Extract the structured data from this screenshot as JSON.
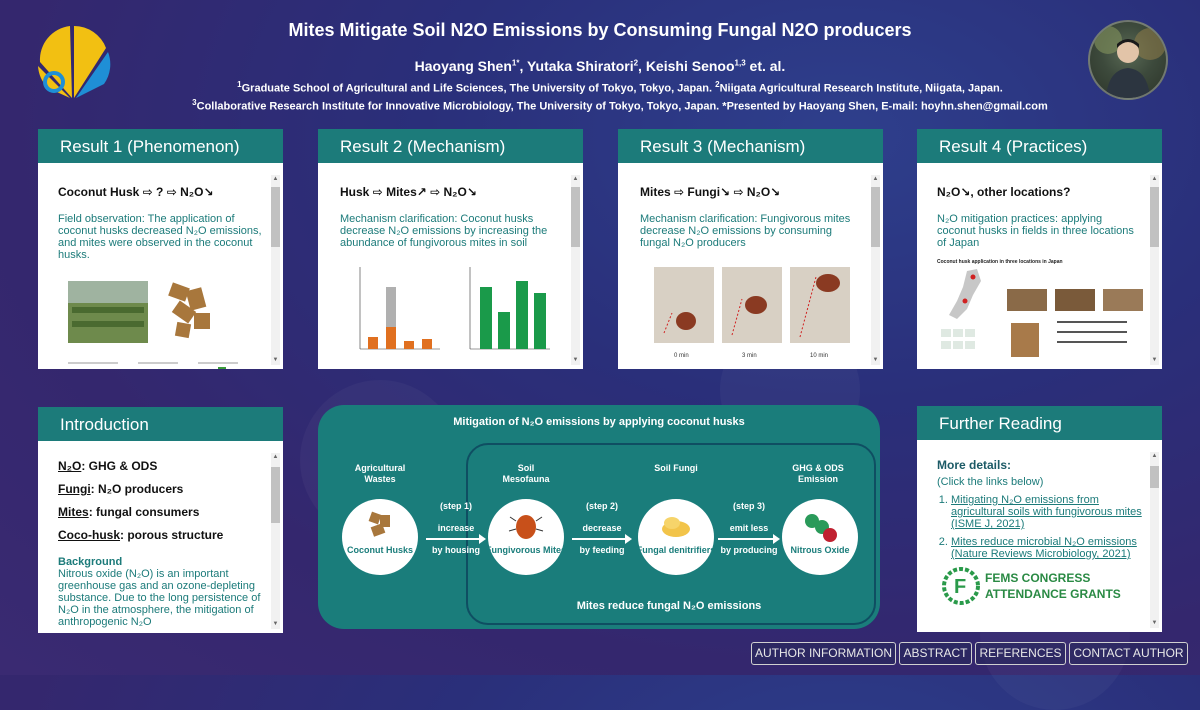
{
  "header": {
    "title": "Mites Mitigate Soil N2O Emissions by Consuming Fungal N2O producers",
    "author1": "Haoyang Shen",
    "author1_sup": "1*",
    "author2": ", Yutaka Shiratori",
    "author2_sup": "2",
    "author3": ", Keishi Senoo",
    "author3_sup": "1,3",
    "author_suffix": " et. al.",
    "affil1_sup": "1",
    "affil1": "Graduate School of Agricultural and Life Sciences, The University of Tokyo, Tokyo, Japan. ",
    "affil2_sup": "2",
    "affil2": "Niigata Agricultural Research Institute, Niigata, Japan.",
    "affil3_sup": "3",
    "affil3": "Collaborative Research Institute for Innovative Microbiology, The University of Tokyo, Tokyo, Japan. *Presented by Haoyang Shen, E-mail: hoyhn.shen@gmail.com"
  },
  "result1": {
    "header": "Result 1 (Phenomenon)",
    "title": "Coconut Husk ⇨ ? ⇨ N₂O↘",
    "text": "Field observation: The application of coconut husks decreased N₂O emissions, and mites were observed in the coconut husks."
  },
  "result2": {
    "header": "Result 2 (Mechanism)",
    "title": "Husk ⇨ Mites↗ ⇨ N₂O↘",
    "text": "Mechanism clarification: Coconut husks decrease N₂O emissions by increasing the abundance of fungivorous mites in soil"
  },
  "result3": {
    "header": "Result 3 (Mechanism)",
    "title": "Mites ⇨ Fungi↘ ⇨ N₂O↘",
    "text": "Mechanism clarification: Fungivorous mites decrease N₂O emissions by consuming fungal N₂O producers",
    "time0": "0 min",
    "time1": "3 min",
    "time2": "10 min"
  },
  "result4": {
    "header": "Result 4 (Practices)",
    "title": "N₂O↘, other locations?",
    "text": "N₂O mitigation practices: applying coconut husks in fields in three locations of Japan",
    "figure_title": "Coconut husk application in three locations in Japan"
  },
  "intro": {
    "header": "Introduction",
    "l1a": "N₂O",
    "l1b": ": GHG & ODS",
    "l2a": "Fungi",
    "l2b": ": N₂O producers",
    "l3a": "Mites",
    "l3b": ": fungal consumers",
    "l4a": "Coco-husk",
    "l4b": ": porous structure",
    "bg_title": "Background",
    "bg_text": "Nitrous oxide (N₂O) is an important greenhouse gas and an ozone-depleting substance. Due to the long persistence of N₂O in the atmosphere, the mitigation of anthropogenic N₂O"
  },
  "diagram": {
    "title": "Mitigation of N₂O emissions by applying coconut husks",
    "bottom": "Mites reduce fungal N₂O emissions",
    "col1_top": "Agricultural Wastes",
    "col2_top": "Soil Mesofauna",
    "col3_top": "Soil Fungi",
    "col4_top": "GHG & ODS Emission",
    "c1": "Coconut Husks",
    "c2": "Fungivorous Mites",
    "c3": "Fungal denitrifiers",
    "c4": "Nitrous Oxide",
    "s1": "(step 1)",
    "s1a": "increase",
    "s1b": "by housing",
    "s2": "(step 2)",
    "s2a": "decrease",
    "s2b": "by feeding",
    "s3": "(step 3)",
    "s3a": "emit less",
    "s3b": "by producing"
  },
  "further": {
    "header": "Further Reading",
    "title": "More details:",
    "sub": "(Click the links below)",
    "link1": "Mitigating N₂O emissions from agricultural soils with fungivorous mites (ISME J, 2021)",
    "link2": "Mites reduce microbial N₂O emissions (Nature Reviews Microbiology, 2021)",
    "grant1": "FEMS CONGRESS",
    "grant2": "ATTENDANCE GRANTS"
  },
  "nav": {
    "b1": "AUTHOR INFORMATION",
    "b2": "ABSTRACT",
    "b3": "REFERENCES",
    "b4": "CONTACT AUTHOR"
  }
}
